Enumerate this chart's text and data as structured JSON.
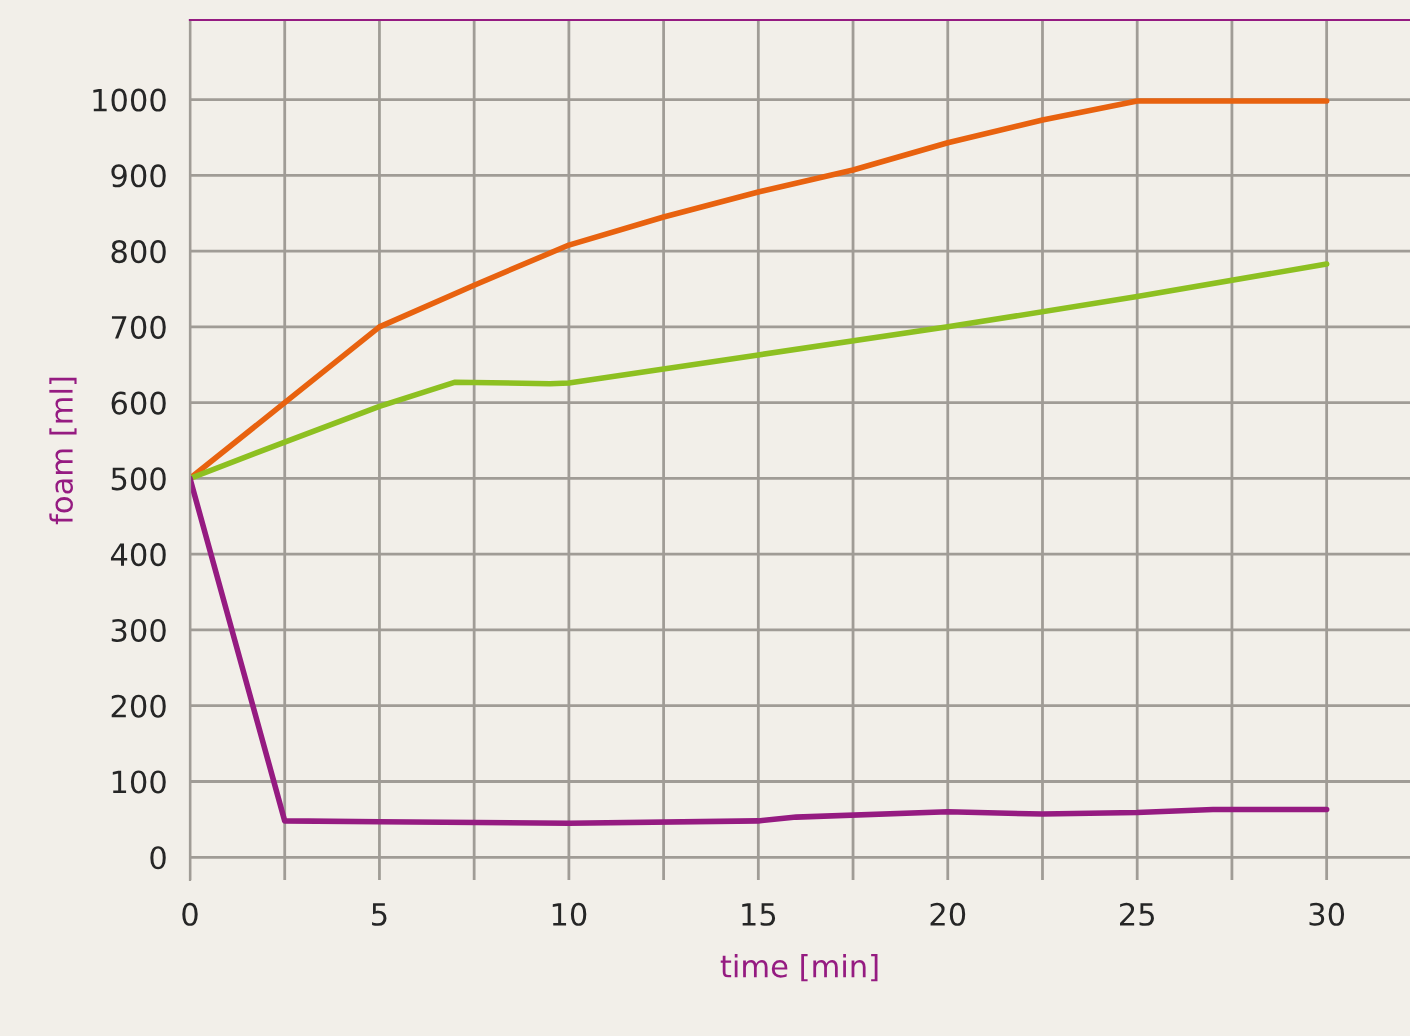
{
  "chart_data": {
    "type": "line",
    "xlabel": "time [min]",
    "ylabel": "foam [ml]",
    "xlim": [
      0,
      32.2
    ],
    "ylim": [
      -30,
      1105
    ],
    "xticks": [
      0,
      {
        "value": 2.5,
        "label": null
      },
      5,
      {
        "value": 7.5,
        "label": null
      },
      10,
      {
        "value": 12.5,
        "label": null
      },
      15,
      {
        "value": 17.5,
        "label": null
      },
      20,
      {
        "value": 22.5,
        "label": null
      },
      25,
      {
        "value": 27.5,
        "label": null
      },
      30
    ],
    "yticks": [
      0,
      100,
      200,
      300,
      400,
      500,
      600,
      700,
      800,
      900,
      1000
    ],
    "grid": true,
    "marker": "none",
    "line_style": "solid",
    "series": [
      {
        "color": "#e8620f",
        "x": [
          0,
          2.5,
          5,
          7.5,
          10,
          12.5,
          15,
          17.5,
          20,
          22.5,
          25,
          27.5,
          30
        ],
        "values": [
          500,
          600,
          700,
          755,
          808,
          845,
          878,
          907,
          943,
          973,
          998,
          998,
          998
        ]
      },
      {
        "color": "#8dc021",
        "x": [
          0,
          2.5,
          5,
          7,
          9.5,
          10,
          15,
          20,
          25,
          30
        ],
        "values": [
          500,
          548,
          595,
          627,
          625,
          626,
          663,
          700,
          740,
          783
        ]
      },
      {
        "color": "#951b81",
        "x": [
          0,
          2.5,
          5,
          10,
          15,
          16,
          20,
          22.5,
          25,
          27,
          30
        ],
        "values": [
          500,
          48,
          47,
          45,
          48,
          53,
          60,
          57,
          59,
          63,
          63
        ]
      }
    ]
  }
}
